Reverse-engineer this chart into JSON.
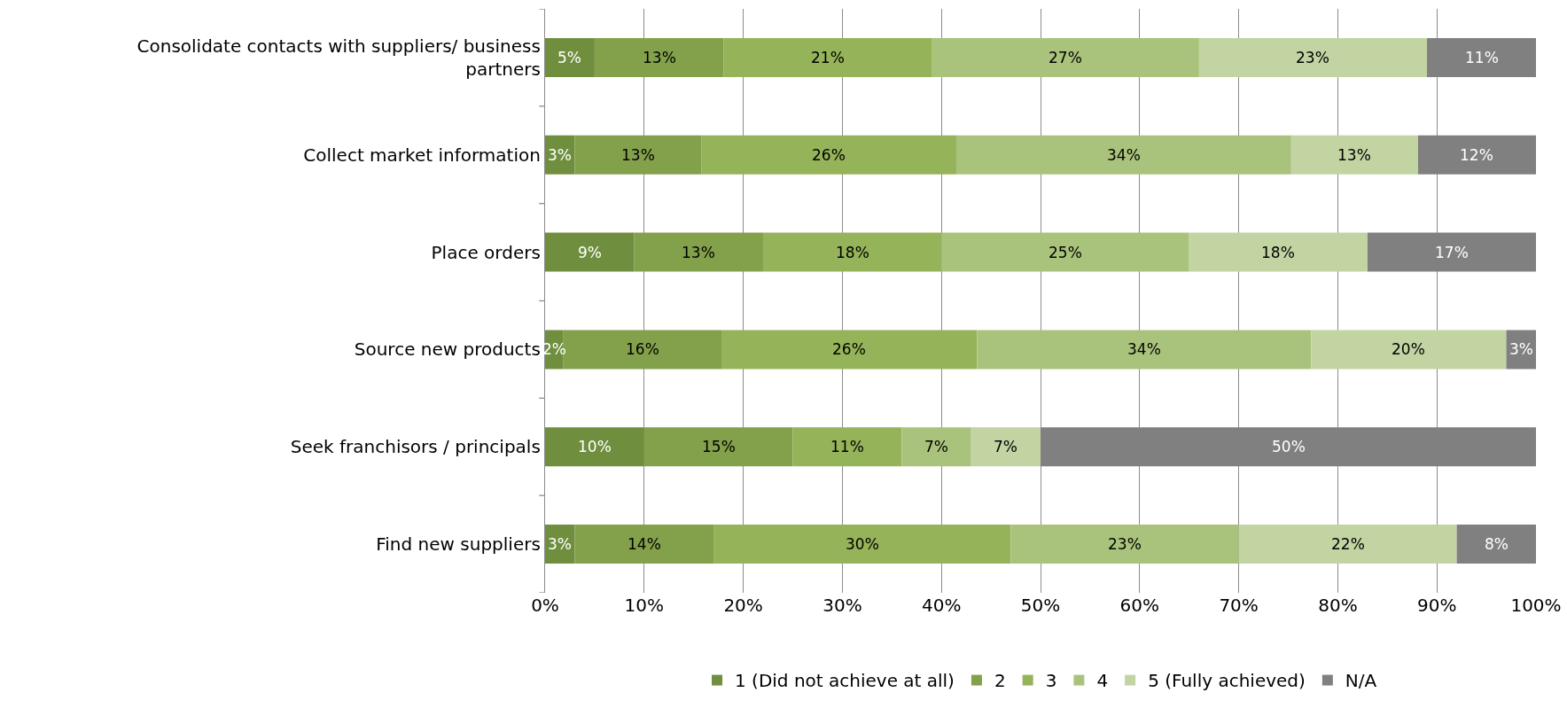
{
  "chart_data": {
    "type": "bar",
    "orientation": "horizontal",
    "stacked": true,
    "categories": [
      "Consolidate contacts with suppliers/ business partners",
      "Collect market information",
      "Place orders",
      "Source new products",
      "Seek franchisors / principals",
      "Find new suppliers"
    ],
    "series": [
      {
        "name": "1 (Did not achieve at all)",
        "color": "#6f8f3e",
        "values": [
          5,
          3,
          9,
          1.8,
          10,
          3
        ],
        "value_labels": [
          "5%",
          "3%",
          "9%",
          "2%",
          "10%",
          "3%"
        ]
      },
      {
        "name": "2",
        "color": "#83a04b",
        "values": [
          13,
          12.8,
          13,
          16,
          15,
          14
        ],
        "value_labels": [
          "13%",
          "13%",
          "13%",
          "16%",
          "15%",
          "14%"
        ]
      },
      {
        "name": "3",
        "color": "#95b358",
        "values": [
          21,
          25.7,
          18,
          25.8,
          11,
          30
        ],
        "value_labels": [
          "21%",
          "26%",
          "18%",
          "26%",
          "11%",
          "30%"
        ]
      },
      {
        "name": "4",
        "color": "#aac37c",
        "values": [
          27,
          33.8,
          25,
          33.7,
          7,
          23
        ],
        "value_labels": [
          "27%",
          "34%",
          "25%",
          "34%",
          "7%",
          "23%"
        ]
      },
      {
        "name": "5 (Fully achieved)",
        "color": "#c2d4a2",
        "values": [
          23,
          12.8,
          18,
          19.7,
          7,
          22
        ],
        "value_labels": [
          "23%",
          "13%",
          "18%",
          "20%",
          "7%",
          "22%"
        ]
      },
      {
        "name": "N/A",
        "color": "#808080",
        "values": [
          11,
          11.9,
          17,
          3,
          50,
          8
        ],
        "value_labels": [
          "11%",
          "12%",
          "17%",
          "3%",
          "50%",
          "8%"
        ]
      }
    ],
    "xlim": [
      0,
      100
    ],
    "xticks": [
      {
        "value": 0,
        "label": "0%"
      },
      {
        "value": 10,
        "label": "10%"
      },
      {
        "value": 20,
        "label": "20%"
      },
      {
        "value": 30,
        "label": "30%"
      },
      {
        "value": 40,
        "label": "40%"
      },
      {
        "value": 50,
        "label": "50%"
      },
      {
        "value": 60,
        "label": "60%"
      },
      {
        "value": 70,
        "label": "70%"
      },
      {
        "value": 80,
        "label": "80%"
      },
      {
        "value": 90,
        "label": "90%"
      },
      {
        "value": 100,
        "label": "100%"
      }
    ],
    "grid": "x",
    "legend": "bottom"
  }
}
